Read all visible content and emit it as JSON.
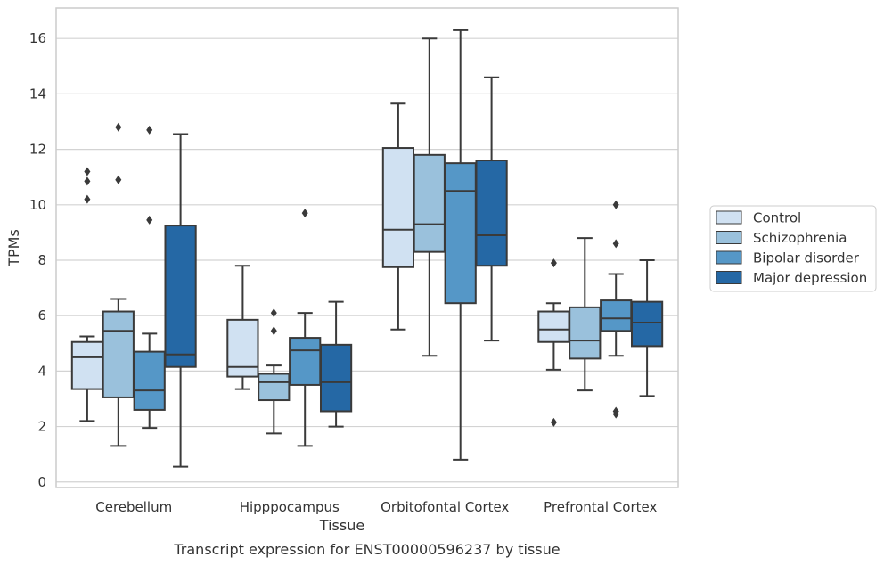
{
  "chart_data": {
    "type": "boxplot",
    "caption": "Transcript expression for ENST00000596237 by tissue",
    "xlabel": "Tissue",
    "ylabel": "TPMs",
    "ylim": [
      -0.2,
      17.1
    ],
    "yticks": [
      0,
      2,
      4,
      6,
      8,
      10,
      12,
      14,
      16
    ],
    "grid": "horizontal",
    "legend_position": "right",
    "categories": [
      "Cerebellum",
      "Hipppocampus",
      "Orbitofontal Cortex",
      "Prefrontal Cortex"
    ],
    "series": [
      {
        "name": "Control",
        "color": "#d0e1f2",
        "boxes": [
          {
            "whislo": 2.2,
            "q1": 3.35,
            "med": 4.5,
            "q3": 5.05,
            "whishi": 5.25,
            "fliers": [
              10.2,
              10.85,
              11.2
            ]
          },
          {
            "whislo": 3.35,
            "q1": 3.8,
            "med": 4.15,
            "q3": 5.85,
            "whishi": 7.8,
            "fliers": []
          },
          {
            "whislo": 5.5,
            "q1": 7.75,
            "med": 9.1,
            "q3": 12.05,
            "whishi": 13.65,
            "fliers": []
          },
          {
            "whislo": 4.05,
            "q1": 5.05,
            "med": 5.5,
            "q3": 6.15,
            "whishi": 6.45,
            "fliers": [
              2.15,
              7.9
            ]
          }
        ]
      },
      {
        "name": "Schizophrenia",
        "color": "#9ac1dc",
        "boxes": [
          {
            "whislo": 1.3,
            "q1": 3.05,
            "med": 5.45,
            "q3": 6.15,
            "whishi": 6.6,
            "fliers": [
              10.9,
              12.8
            ]
          },
          {
            "whislo": 1.75,
            "q1": 2.95,
            "med": 3.6,
            "q3": 3.9,
            "whishi": 4.2,
            "fliers": [
              5.45,
              6.1
            ]
          },
          {
            "whislo": 4.55,
            "q1": 8.3,
            "med": 9.3,
            "q3": 11.8,
            "whishi": 16.0,
            "fliers": []
          },
          {
            "whislo": 3.3,
            "q1": 4.45,
            "med": 5.1,
            "q3": 6.3,
            "whishi": 8.8,
            "fliers": []
          }
        ]
      },
      {
        "name": "Bipolar disorder",
        "color": "#5597c7",
        "boxes": [
          {
            "whislo": 1.95,
            "q1": 2.6,
            "med": 3.3,
            "q3": 4.7,
            "whishi": 5.35,
            "fliers": [
              9.45,
              12.7
            ]
          },
          {
            "whislo": 1.3,
            "q1": 3.5,
            "med": 4.75,
            "q3": 5.2,
            "whishi": 6.1,
            "fliers": [
              9.7
            ]
          },
          {
            "whislo": 0.8,
            "q1": 6.45,
            "med": 10.5,
            "q3": 11.5,
            "whishi": 16.3,
            "fliers": []
          },
          {
            "whislo": 4.55,
            "q1": 5.45,
            "med": 5.9,
            "q3": 6.55,
            "whishi": 7.5,
            "fliers": [
              2.45,
              2.55,
              8.6,
              10.0
            ]
          }
        ]
      },
      {
        "name": "Major depression",
        "color": "#2568a5",
        "boxes": [
          {
            "whislo": 0.55,
            "q1": 4.15,
            "med": 4.6,
            "q3": 9.25,
            "whishi": 12.55,
            "fliers": []
          },
          {
            "whislo": 2.0,
            "q1": 2.55,
            "med": 3.6,
            "q3": 4.95,
            "whishi": 6.5,
            "fliers": []
          },
          {
            "whislo": 5.1,
            "q1": 7.8,
            "med": 8.9,
            "q3": 11.6,
            "whishi": 14.6,
            "fliers": []
          },
          {
            "whislo": 3.1,
            "q1": 4.9,
            "med": 5.75,
            "q3": 6.5,
            "whishi": 8.0,
            "fliers": []
          }
        ]
      }
    ]
  }
}
